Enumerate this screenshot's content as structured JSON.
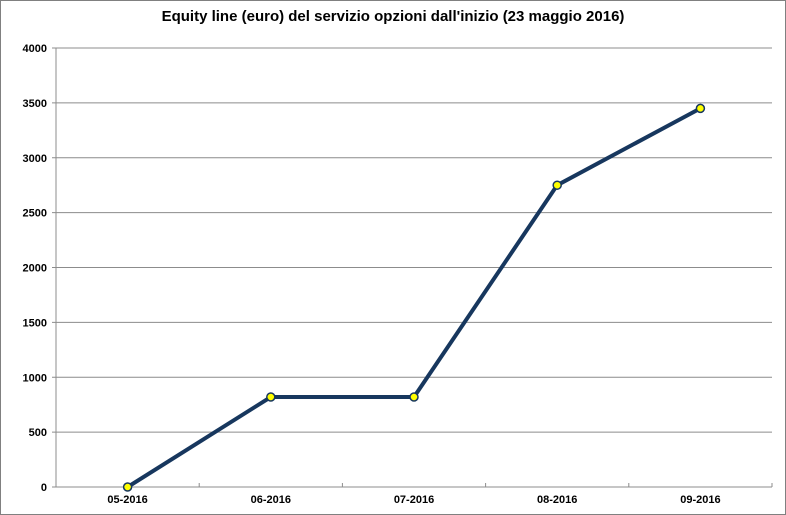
{
  "chart_data": {
    "type": "line",
    "title": "Equity line (euro) del servizio opzioni dall'inizio (23 maggio 2016)",
    "categories": [
      "05-2016",
      "06-2016",
      "07-2016",
      "08-2016",
      "09-2016"
    ],
    "series": [
      {
        "name": "equity",
        "values": [
          0,
          820,
          820,
          2750,
          3450
        ]
      }
    ],
    "xlabel": "",
    "ylabel": "",
    "ylim": [
      0,
      4000
    ],
    "ytick_step": 500,
    "ytick_labels": [
      "0",
      "500",
      "1000",
      "1500",
      "2000",
      "2500",
      "3000",
      "3500",
      "4000"
    ],
    "grid": true,
    "legend": false,
    "colors": {
      "line": "#17375E",
      "marker_fill": "#FFFF00",
      "marker_stroke": "#17375E",
      "grid": "#8C8C8C",
      "axis": "#8C8C8C",
      "text": "#000000",
      "background": "#FFFFFF",
      "frame_border": "#808080"
    },
    "style": {
      "line_width": 4,
      "marker_radius": 4
    }
  }
}
